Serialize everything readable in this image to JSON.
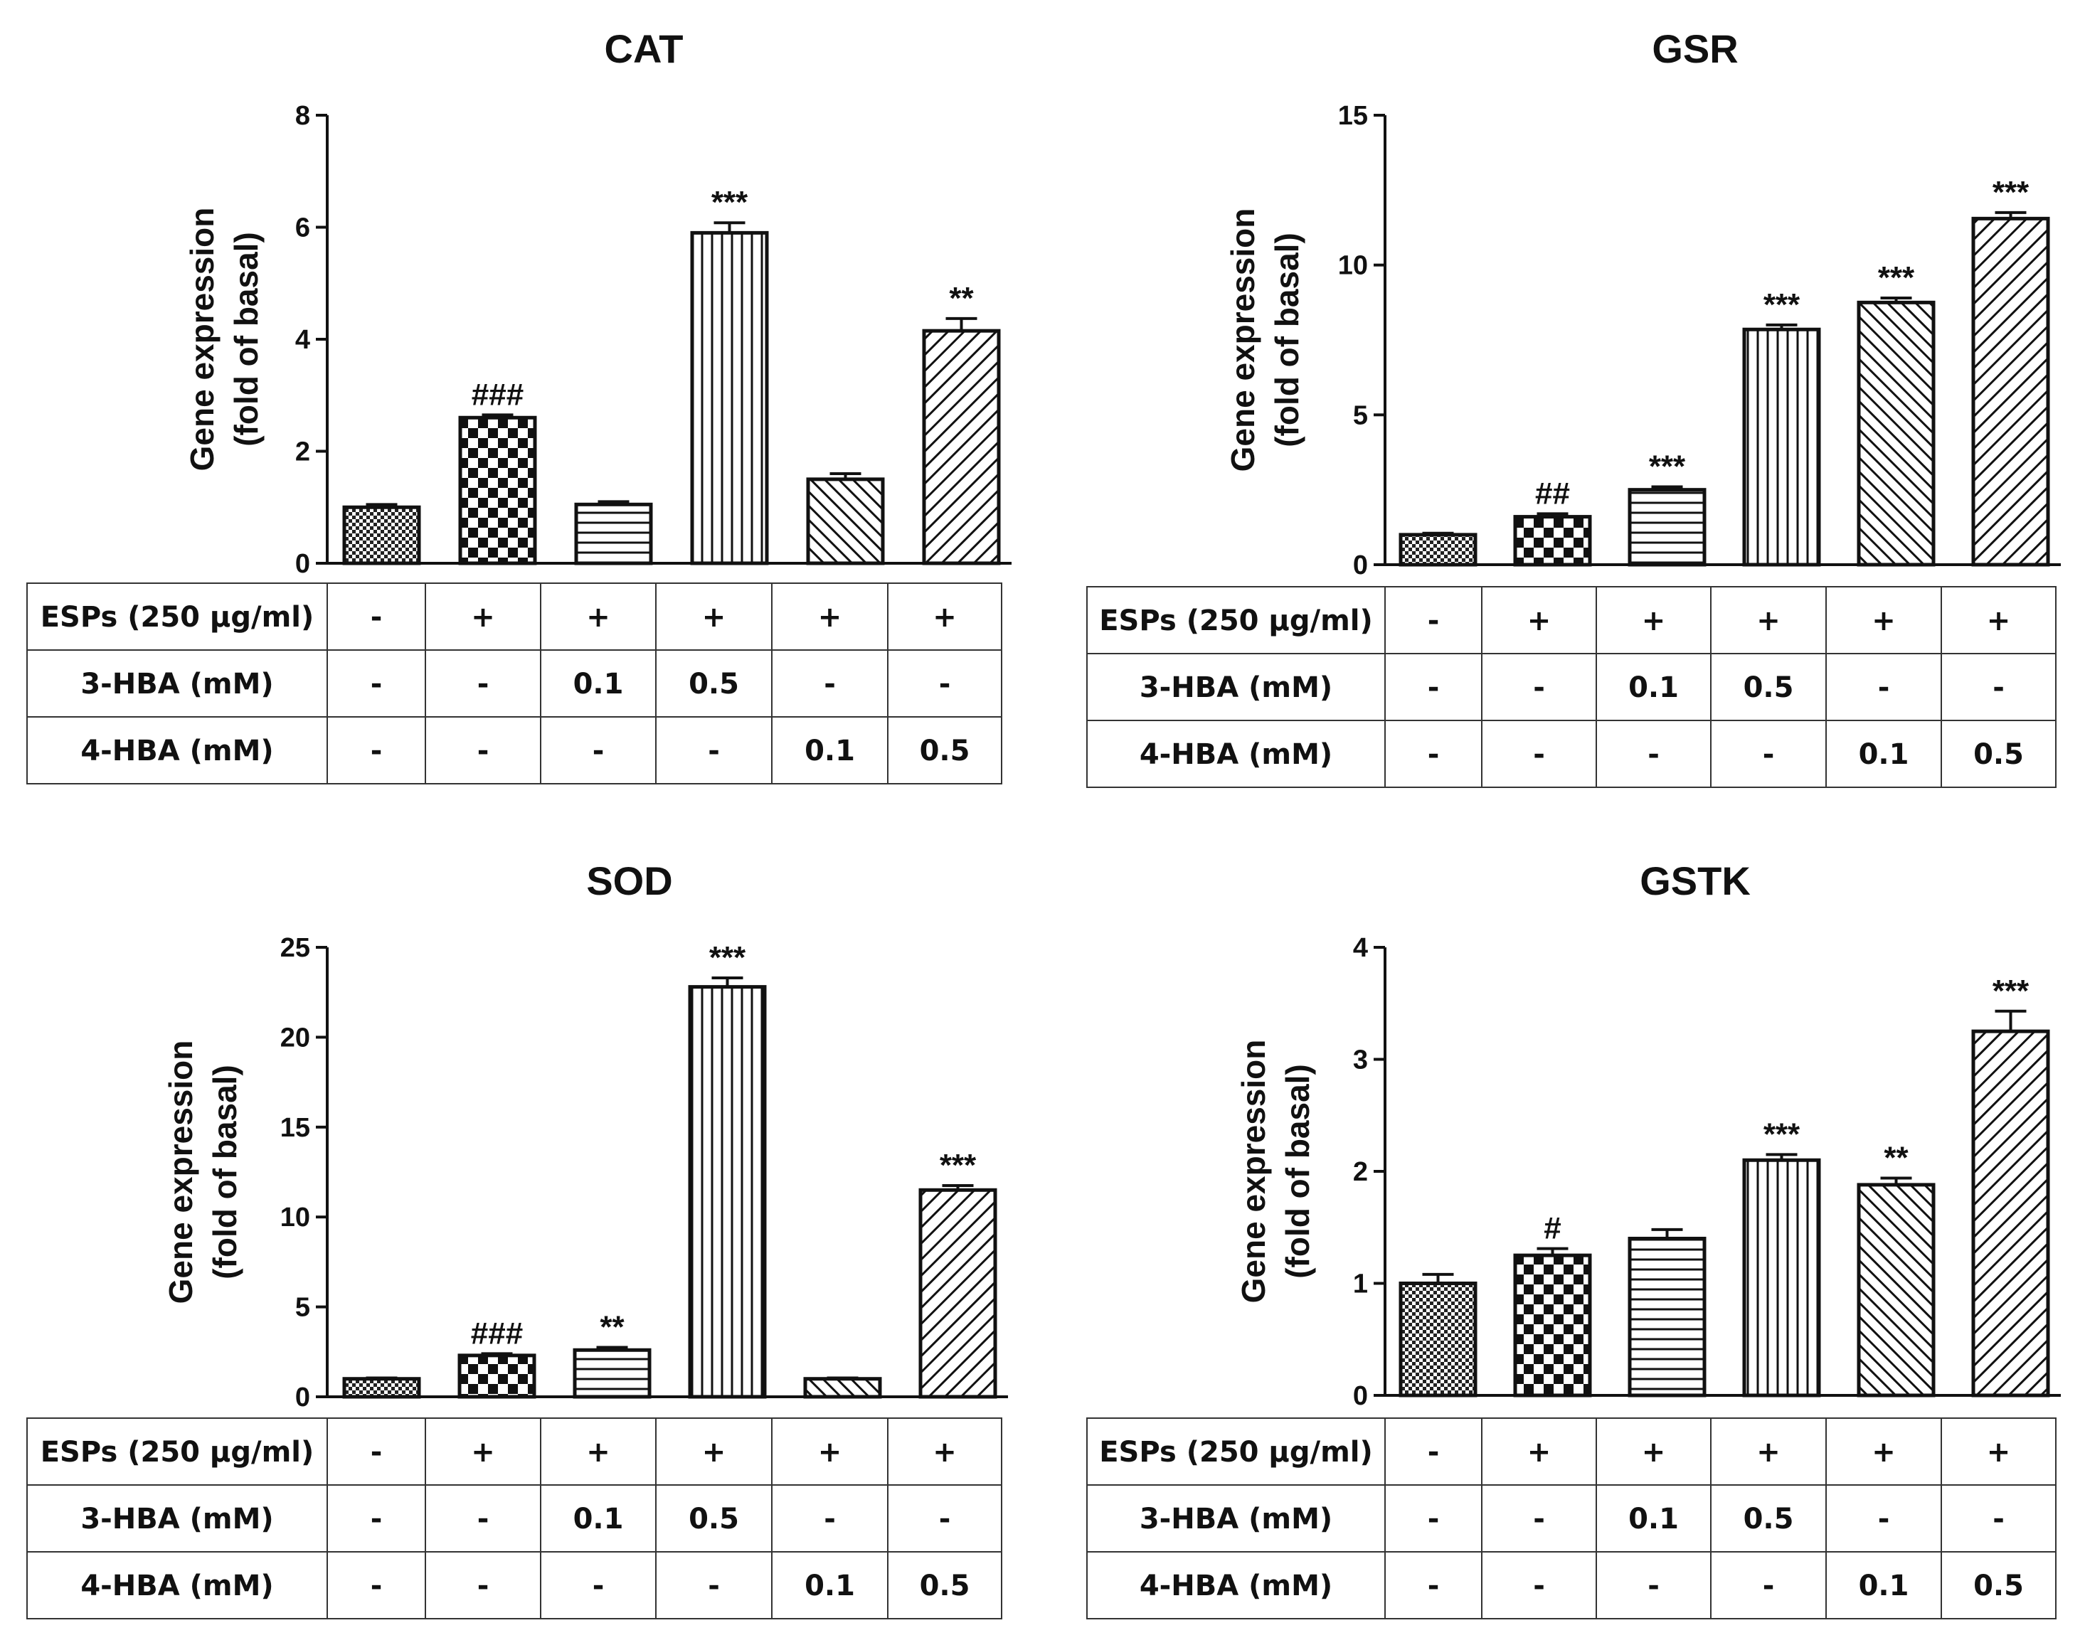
{
  "chart_data": [
    {
      "type": "bar",
      "title": "CAT",
      "ylabel": [
        "Gene expression",
        "(fold of basal)"
      ],
      "ylim": [
        0,
        8
      ],
      "yticks": [
        0,
        2,
        4,
        6,
        8
      ],
      "values": [
        1.0,
        2.6,
        1.05,
        5.9,
        1.5,
        4.15
      ],
      "errors": [
        0.05,
        0.05,
        0.05,
        0.18,
        0.1,
        0.22
      ],
      "annotations": [
        "",
        "###",
        "",
        "***",
        "",
        "**"
      ],
      "table": {
        "rows": [
          {
            "label": "ESPs (250 µg/ml)",
            "cells": [
              "-",
              "+",
              "+",
              "+",
              "+",
              "+"
            ]
          },
          {
            "label": "3-HBA (mM)",
            "cells": [
              "-",
              "-",
              "0.1",
              "0.5",
              "-",
              "-"
            ]
          },
          {
            "label": "4-HBA (mM)",
            "cells": [
              "-",
              "-",
              "-",
              "-",
              "0.1",
              "0.5"
            ]
          }
        ]
      }
    },
    {
      "type": "bar",
      "title": "GSR",
      "ylabel": [
        "Gene expression",
        "(fold of basal)"
      ],
      "ylim": [
        0,
        15
      ],
      "yticks": [
        0,
        5,
        10,
        15
      ],
      "values": [
        1.0,
        1.6,
        2.5,
        7.85,
        8.75,
        11.55
      ],
      "errors": [
        0.05,
        0.1,
        0.1,
        0.15,
        0.15,
        0.2
      ],
      "annotations": [
        "",
        "##",
        "***",
        "***",
        "***",
        "***"
      ],
      "table": {
        "rows": [
          {
            "label": "ESPs (250 µg/ml)",
            "cells": [
              "-",
              "+",
              "+",
              "+",
              "+",
              "+"
            ]
          },
          {
            "label": "3-HBA (mM)",
            "cells": [
              "-",
              "-",
              "0.1",
              "0.5",
              "-",
              "-"
            ]
          },
          {
            "label": "4-HBA (mM)",
            "cells": [
              "-",
              "-",
              "-",
              "-",
              "0.1",
              "0.5"
            ]
          }
        ]
      }
    },
    {
      "type": "bar",
      "title": "SOD",
      "ylabel": [
        "Gene expression",
        "(fold of basal)"
      ],
      "ylim": [
        0,
        25
      ],
      "yticks": [
        0,
        5,
        10,
        15,
        20,
        25
      ],
      "values": [
        1.0,
        2.3,
        2.6,
        22.8,
        1.0,
        11.5
      ],
      "errors": [
        0.05,
        0.1,
        0.15,
        0.5,
        0.05,
        0.25
      ],
      "annotations": [
        "",
        "###",
        "**",
        "***",
        "",
        "***"
      ],
      "table": {
        "rows": [
          {
            "label": "ESPs (250 µg/ml)",
            "cells": [
              "-",
              "+",
              "+",
              "+",
              "+",
              "+"
            ]
          },
          {
            "label": "3-HBA (mM)",
            "cells": [
              "-",
              "-",
              "0.1",
              "0.5",
              "-",
              "-"
            ]
          },
          {
            "label": "4-HBA (mM)",
            "cells": [
              "-",
              "-",
              "-",
              "-",
              "0.1",
              "0.5"
            ]
          }
        ]
      }
    },
    {
      "type": "bar",
      "title": "GSTK",
      "ylabel": [
        "Gene expression",
        "(fold of basal)"
      ],
      "ylim": [
        0,
        4
      ],
      "yticks": [
        0,
        1,
        2,
        3,
        4
      ],
      "values": [
        1.0,
        1.25,
        1.4,
        2.1,
        1.88,
        3.25
      ],
      "errors": [
        0.08,
        0.06,
        0.08,
        0.05,
        0.06,
        0.18
      ],
      "annotations": [
        "",
        "#",
        "",
        "***",
        "**",
        "***"
      ],
      "table": {
        "rows": [
          {
            "label": "ESPs (250 µg/ml)",
            "cells": [
              "-",
              "+",
              "+",
              "+",
              "+",
              "+"
            ]
          },
          {
            "label": "3-HBA (mM)",
            "cells": [
              "-",
              "-",
              "0.1",
              "0.5",
              "-",
              "-"
            ]
          },
          {
            "label": "4-HBA (mM)",
            "cells": [
              "-",
              "-",
              "-",
              "-",
              "0.1",
              "0.5"
            ]
          }
        ]
      }
    }
  ],
  "patterns": [
    "bar-pattern-fine-dots",
    "bar-pattern-checker",
    "bar-pattern-horizontal",
    "bar-pattern-vertical",
    "bar-pattern-diagonal-dense",
    "bar-pattern-diagonal-wide"
  ],
  "colors": {
    "ink": "#111111",
    "background": "#ffffff"
  }
}
